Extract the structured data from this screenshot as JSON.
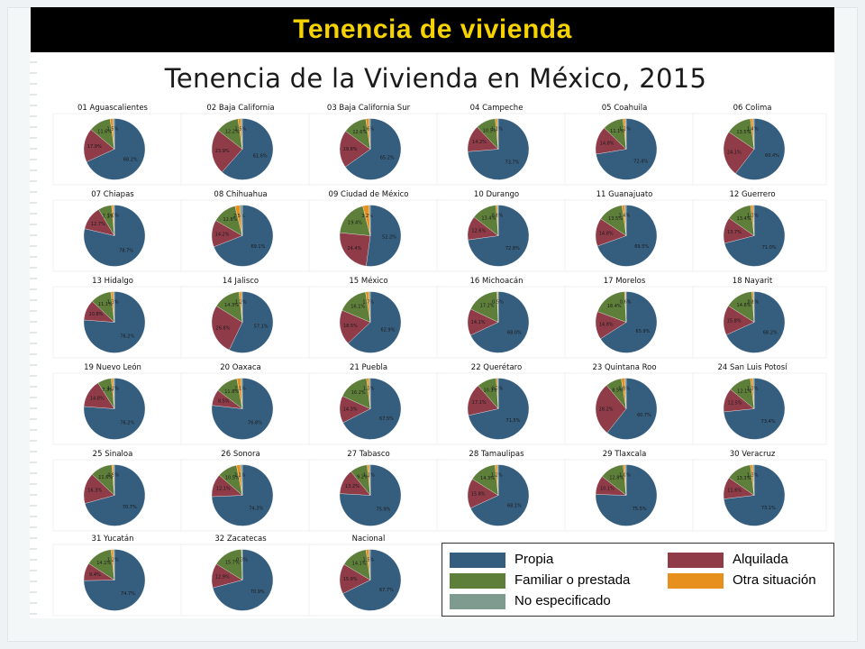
{
  "slide": {
    "header_title": "Tenencia de vivienda"
  },
  "chart_data": {
    "type": "pie",
    "title": "Tenencia de la Vivienda en México, 2015",
    "categories": [
      "Propia",
      "Alquilada",
      "Familiar o prestada",
      "Otra situación",
      "No especificado"
    ],
    "colors": {
      "Propia": "#355d7e",
      "Alquilada": "#8f3b48",
      "Familiar o prestada": "#5e7f3a",
      "Otra situación": "#e8901e",
      "No especificado": "#7f9a8e"
    },
    "legend_position": "bottom-right",
    "legend": [
      {
        "label": "Propia",
        "color": "#355d7e"
      },
      {
        "label": "Alquilada",
        "color": "#8f3b48"
      },
      {
        "label": "Familiar o prestada",
        "color": "#5e7f3a"
      },
      {
        "label": "Otra situación",
        "color": "#e8901e"
      },
      {
        "label": "No especificado",
        "color": "#7f9a8e"
      }
    ],
    "pies": [
      {
        "name": "01 Aguascalientes",
        "values": [
          68.2,
          17.9,
          11.6,
          1.5,
          0.8
        ],
        "labels": [
          "68.2%",
          "17.9%",
          "11.6%",
          "1.5%",
          ""
        ]
      },
      {
        "name": "02 Baja California",
        "values": [
          61.6,
          23.9,
          12.2,
          1.5,
          0.8
        ],
        "labels": [
          "61.6%",
          "23.9%",
          "12.2%",
          "1.5%",
          ""
        ]
      },
      {
        "name": "03 Baja California Sur",
        "values": [
          65.2,
          19.8,
          12.6,
          1.6,
          0.8
        ],
        "labels": [
          "65.2%",
          "19.8%",
          "12.6%",
          "1.6%",
          ""
        ]
      },
      {
        "name": "04 Campeche",
        "values": [
          73.7,
          14.2,
          10.5,
          1.1,
          0.5
        ],
        "labels": [
          "73.7%",
          "14.2%",
          "10.5%",
          "1.1%",
          ""
        ]
      },
      {
        "name": "05 Coahuila",
        "values": [
          72.4,
          14.8,
          11.1,
          1.2,
          0.5
        ],
        "labels": [
          "72.4%",
          "14.8%",
          "11.1%",
          "1.2%",
          ""
        ]
      },
      {
        "name": "06 Colima",
        "values": [
          60.4,
          24.1,
          13.5,
          1.4,
          0.6
        ],
        "labels": [
          "60.4%",
          "24.1%",
          "13.5%",
          "1.4%",
          ""
        ]
      },
      {
        "name": "07 Chiapas",
        "values": [
          78.7,
          12.7,
          7.1,
          1.0,
          0.5
        ],
        "labels": [
          "78.7%",
          "12.7%",
          "7.1%",
          "1.0%",
          ""
        ]
      },
      {
        "name": "08 Chihuahua",
        "values": [
          69.1,
          14.2,
          12.8,
          2.5,
          1.4
        ],
        "labels": [
          "69.1%",
          "14.2%",
          "12.8%",
          "2.5%",
          ""
        ]
      },
      {
        "name": "09 Ciudad de México",
        "values": [
          52.2,
          24.4,
          19.4,
          3.2,
          0.8
        ],
        "labels": [
          "52.2%",
          "24.4%",
          "19.4%",
          "3.2%",
          ""
        ]
      },
      {
        "name": "10 Durango",
        "values": [
          72.8,
          12.6,
          13.4,
          0.8,
          0.4
        ],
        "labels": [
          "72.8%",
          "12.6%",
          "13.4%",
          "0.8%",
          ""
        ]
      },
      {
        "name": "11 Guanajuato",
        "values": [
          69.5,
          14.8,
          13.5,
          1.4,
          0.8
        ],
        "labels": [
          "69.5%",
          "14.8%",
          "13.5%",
          "1.4%",
          ""
        ]
      },
      {
        "name": "12 Guerrero",
        "values": [
          71.0,
          13.7,
          13.4,
          1.3,
          0.6
        ],
        "labels": [
          "71.0%",
          "13.7%",
          "13.4%",
          "1.3%",
          ""
        ]
      },
      {
        "name": "13 Hidalgo",
        "values": [
          76.2,
          10.8,
          11.1,
          1.3,
          0.6
        ],
        "labels": [
          "76.2%",
          "10.8%",
          "11.1%",
          "1.3%",
          ""
        ]
      },
      {
        "name": "14 Jalisco",
        "values": [
          57.1,
          26.8,
          14.3,
          1.2,
          0.6
        ],
        "labels": [
          "57.1%",
          "26.8%",
          "14.3%",
          "1.2%",
          ""
        ]
      },
      {
        "name": "15 México",
        "values": [
          62.9,
          18.5,
          16.1,
          1.7,
          0.8
        ],
        "labels": [
          "62.9%",
          "18.5%",
          "16.1%",
          "1.7%",
          ""
        ]
      },
      {
        "name": "16 Michoacán",
        "values": [
          68.0,
          14.1,
          17.2,
          0.5,
          0.2
        ],
        "labels": [
          "68.0%",
          "14.1%",
          "17.2%",
          "0.5%",
          ""
        ]
      },
      {
        "name": "17 Morelos",
        "values": [
          65.9,
          14.8,
          18.4,
          0.6,
          0.3
        ],
        "labels": [
          "65.9%",
          "14.8%",
          "18.4%",
          "0.6%",
          ""
        ]
      },
      {
        "name": "18 Nayarit",
        "values": [
          68.2,
          15.8,
          14.8,
          0.8,
          0.4
        ],
        "labels": [
          "68.2%",
          "15.8%",
          "14.8%",
          "0.8%",
          ""
        ]
      },
      {
        "name": "19 Nuevo León",
        "values": [
          76.2,
          14.8,
          7.3,
          1.1,
          0.6
        ],
        "labels": [
          "76.2%",
          "14.8%",
          "7.3%",
          "1.1%",
          ""
        ]
      },
      {
        "name": "20 Oaxaca",
        "values": [
          76.8,
          8.5,
          11.8,
          2.1,
          0.8
        ],
        "labels": [
          "76.8%",
          "8.5%",
          "11.8%",
          "2.1%",
          ""
        ]
      },
      {
        "name": "21 Puebla",
        "values": [
          67.5,
          14.3,
          16.2,
          1.3,
          0.7
        ],
        "labels": [
          "67.5%",
          "14.3%",
          "16.2%",
          "1.3%",
          ""
        ]
      },
      {
        "name": "22 Querétaro",
        "values": [
          71.5,
          17.1,
          10.3,
          0.7,
          0.4
        ],
        "labels": [
          "71.5%",
          "17.1%",
          "10.3%",
          "0.7%",
          ""
        ]
      },
      {
        "name": "23 Quintana Roo",
        "values": [
          60.7,
          28.2,
          8.5,
          1.8,
          0.8
        ],
        "labels": [
          "60.7%",
          "28.2%",
          "8.5%",
          "1.8%",
          ""
        ]
      },
      {
        "name": "24 San Luis Potosí",
        "values": [
          73.4,
          12.5,
          12.1,
          1.3,
          0.7
        ],
        "labels": [
          "73.4%",
          "12.5%",
          "12.1%",
          "1.3%",
          ""
        ]
      },
      {
        "name": "25 Sinaloa",
        "values": [
          70.7,
          16.3,
          11.6,
          0.9,
          0.5
        ],
        "labels": [
          "70.7%",
          "16.3%",
          "11.6%",
          "0.9%",
          ""
        ]
      },
      {
        "name": "26 Sonora",
        "values": [
          74.3,
          12.1,
          10.5,
          2.1,
          1.0
        ],
        "labels": [
          "74.3%",
          "12.1%",
          "10.5%",
          "2.1%",
          ""
        ]
      },
      {
        "name": "27 Tabasco",
        "values": [
          75.9,
          13.2,
          9.2,
          1.1,
          0.6
        ],
        "labels": [
          "75.9%",
          "13.2%",
          "9.2%",
          "1.1%",
          ""
        ]
      },
      {
        "name": "28 Tamaulipas",
        "values": [
          68.1,
          15.8,
          14.3,
          1.2,
          0.6
        ],
        "labels": [
          "68.1%",
          "15.8%",
          "14.3%",
          "1.2%",
          ""
        ]
      },
      {
        "name": "29 Tlaxcala",
        "values": [
          75.5,
          10.1,
          12.8,
          1.0,
          0.6
        ],
        "labels": [
          "75.5%",
          "10.1%",
          "12.8%",
          "1.0%",
          ""
        ]
      },
      {
        "name": "30 Veracruz",
        "values": [
          73.1,
          11.6,
          13.3,
          1.3,
          0.7
        ],
        "labels": [
          "73.1%",
          "11.6%",
          "13.3%",
          "1.3%",
          ""
        ]
      },
      {
        "name": "31 Yucatán",
        "values": [
          74.7,
          9.4,
          14.1,
          1.2,
          0.6
        ],
        "labels": [
          "74.7%",
          "9.4%",
          "14.1%",
          "1.2%",
          ""
        ]
      },
      {
        "name": "32 Zacatecas",
        "values": [
          70.9,
          12.9,
          15.7,
          0.3,
          0.2
        ],
        "labels": [
          "70.9%",
          "12.9%",
          "15.7%",
          "0.3%",
          ""
        ]
      },
      {
        "name": "Nacional",
        "values": [
          67.7,
          15.9,
          14.1,
          1.5,
          0.8
        ],
        "labels": [
          "67.7%",
          "15.9%",
          "14.1%",
          "1.5%",
          ""
        ]
      }
    ]
  }
}
